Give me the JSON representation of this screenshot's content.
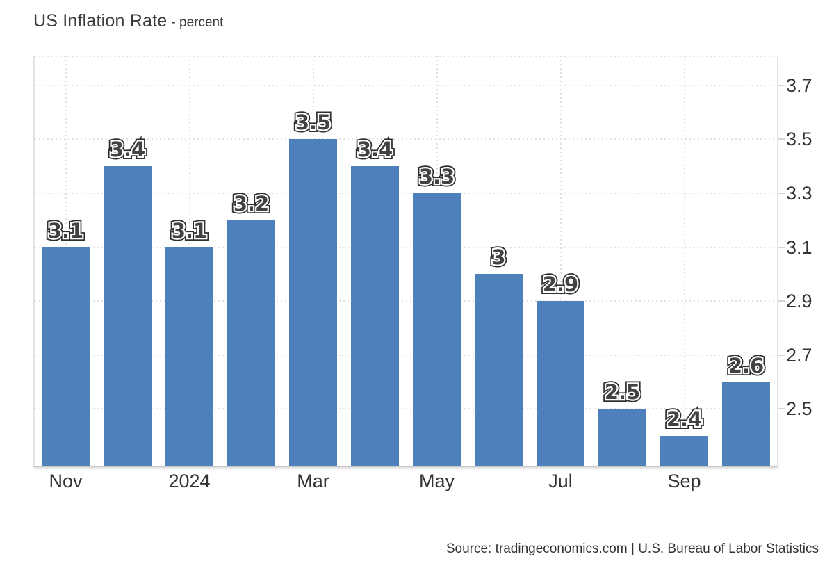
{
  "title": {
    "main": "US Inflation Rate",
    "subtitle": "- percent"
  },
  "source": "Source: tradingeconomics.com | U.S. Bureau of Labor Statistics",
  "colors": {
    "bar": "#4e80bc",
    "grid": "#e1e1e1",
    "plot_border": "#e4e4e4",
    "axis_line": "#c9c9c9",
    "tick_text": "#333333",
    "title_text": "#3a3a3a",
    "value_label_fill": "#424242",
    "value_label_halo": "#ffffff",
    "value_label_outline": "#2e2e2e"
  },
  "chart_data": {
    "type": "bar",
    "title": "US Inflation Rate",
    "subtitle": "- percent",
    "ylabel": "percent",
    "bars": [
      {
        "label": "3.1",
        "value": 3.1
      },
      {
        "label": "3.4",
        "value": 3.4
      },
      {
        "label": "3.1",
        "value": 3.1
      },
      {
        "label": "3.2",
        "value": 3.2
      },
      {
        "label": "3.5",
        "value": 3.5
      },
      {
        "label": "3.4",
        "value": 3.4
      },
      {
        "label": "3.3",
        "value": 3.3
      },
      {
        "label": "3",
        "value": 3.0
      },
      {
        "label": "2.9",
        "value": 2.9
      },
      {
        "label": "2.5",
        "value": 2.5
      },
      {
        "label": "2.4",
        "value": 2.4
      },
      {
        "label": "2.6",
        "value": 2.6
      }
    ],
    "x_ticks": [
      {
        "label": "Nov",
        "slot": 0
      },
      {
        "label": "2024",
        "slot": 2
      },
      {
        "label": "Mar",
        "slot": 4
      },
      {
        "label": "May",
        "slot": 6
      },
      {
        "label": "Jul",
        "slot": 8
      },
      {
        "label": "Sep",
        "slot": 10
      }
    ],
    "y_ticks": [
      3.7,
      3.5,
      3.3,
      3.1,
      2.9,
      2.7,
      2.5
    ],
    "ylim": [
      2.29,
      3.81
    ],
    "y_axis_side": "right",
    "grid": "dotted",
    "legend": "none"
  }
}
